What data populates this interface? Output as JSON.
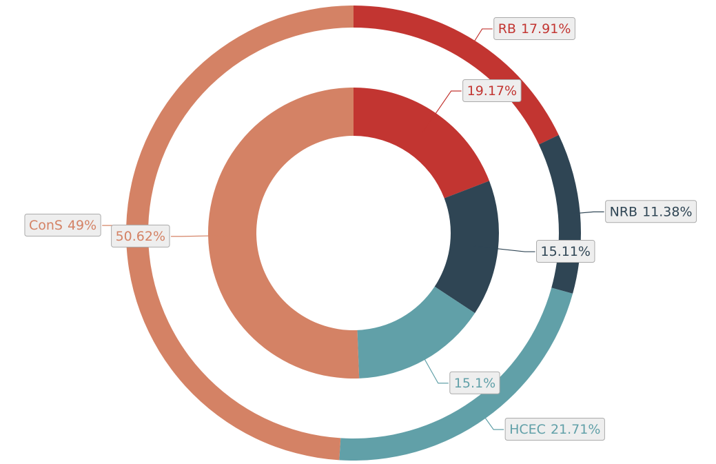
{
  "chart_data": {
    "type": "pie",
    "categories": [
      "RB",
      "NRB",
      "HCEC",
      "ConS"
    ],
    "colors": [
      "#c23531",
      "#2f4554",
      "#61a0a8",
      "#d48265"
    ],
    "series": [
      {
        "values": [
          17.91,
          11.38,
          21.71,
          49
        ],
        "value_labels": [
          "17.91%",
          "11.38%",
          "21.71%",
          "49%"
        ]
      },
      {
        "values": [
          19.17,
          15.11,
          15.1,
          50.62
        ],
        "value_labels": [
          "19.17%",
          "15.11%",
          "15.1%",
          "50.62%"
        ]
      }
    ]
  }
}
